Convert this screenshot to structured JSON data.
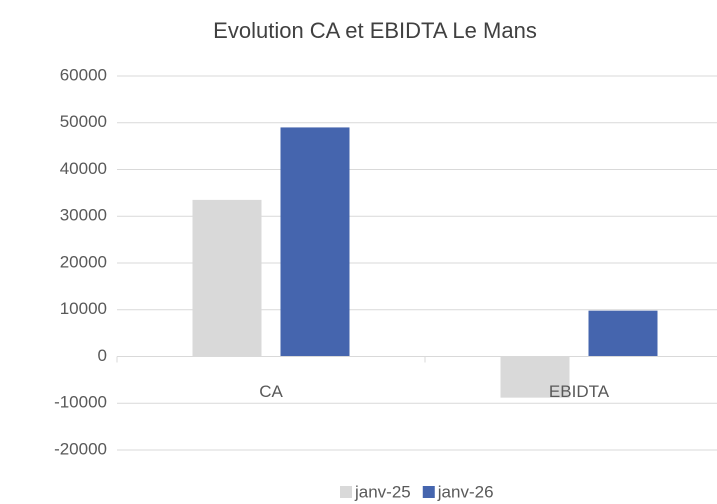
{
  "chart_data": {
    "type": "bar",
    "title": "Evolution CA et EBIDTA Le Mans",
    "categories": [
      "CA",
      "EBIDTA"
    ],
    "series": [
      {
        "name": "janv-25",
        "color": "#d9d9d9",
        "values": [
          33500,
          -8800
        ]
      },
      {
        "name": "janv-26",
        "color": "#4565ae",
        "values": [
          49000,
          9800
        ]
      }
    ],
    "ylim": [
      -20000,
      60000
    ],
    "yticks": [
      -20000,
      -10000,
      0,
      10000,
      20000,
      30000,
      40000,
      50000,
      60000
    ],
    "grid": true,
    "legend": "bottom"
  }
}
